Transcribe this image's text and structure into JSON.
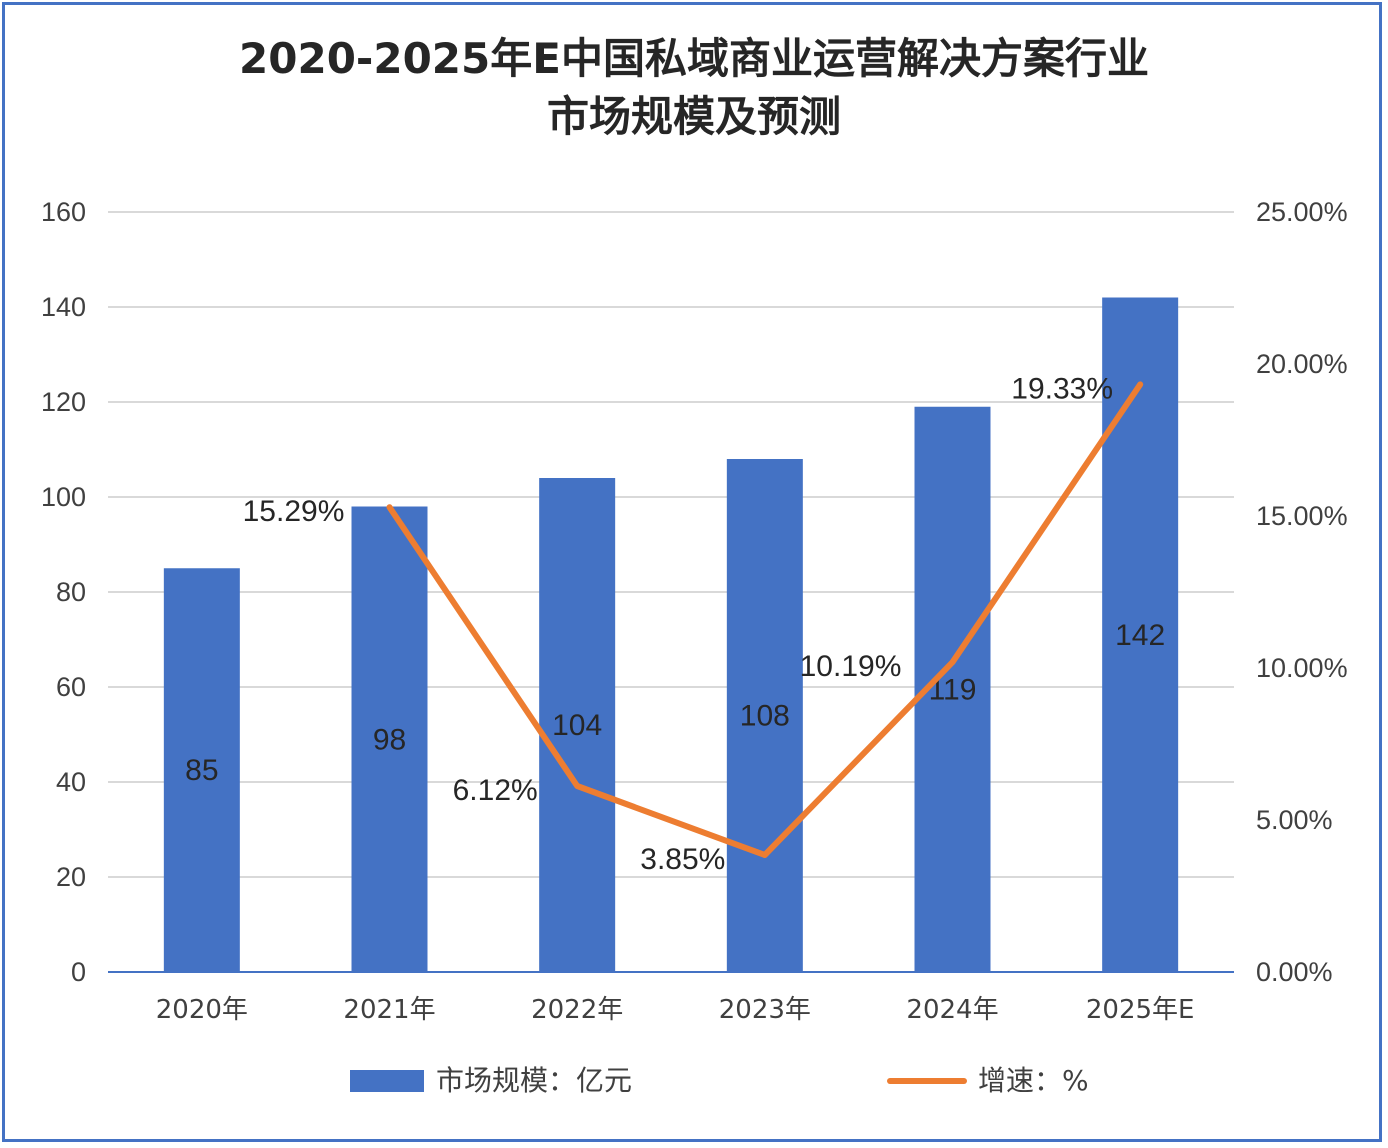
{
  "chart_data": {
    "type": "bar",
    "title_line1": "2020-2025年E中国私域商业运营解决方案行业",
    "title_line2": "市场规模及预测",
    "categories": [
      "2020年",
      "2021年",
      "2022年",
      "2023年",
      "2024年",
      "2025年E"
    ],
    "series": [
      {
        "name": "市场规模：亿元",
        "type": "bar",
        "axis": "left",
        "color": "#4472C4",
        "values": [
          85,
          98,
          104,
          108,
          119,
          142
        ],
        "labels": [
          "85",
          "98",
          "104",
          "108",
          "119",
          "142"
        ]
      },
      {
        "name": "增速：%",
        "type": "line",
        "axis": "right",
        "color": "#ED7D31",
        "values": [
          null,
          15.29,
          6.12,
          3.85,
          10.19,
          19.33
        ],
        "labels": [
          "",
          "15.29%",
          "6.12%",
          "3.85%",
          "10.19%",
          "19.33%"
        ]
      }
    ],
    "y_left": {
      "min": 0,
      "max": 160,
      "ticks": [
        "0",
        "20",
        "40",
        "60",
        "80",
        "100",
        "120",
        "140",
        "160"
      ]
    },
    "y_right": {
      "min": 0,
      "max": 25,
      "ticks": [
        "0.00%",
        "5.00%",
        "10.00%",
        "15.00%",
        "20.00%",
        "25.00%"
      ]
    },
    "grid": true,
    "legend_position": "bottom"
  }
}
